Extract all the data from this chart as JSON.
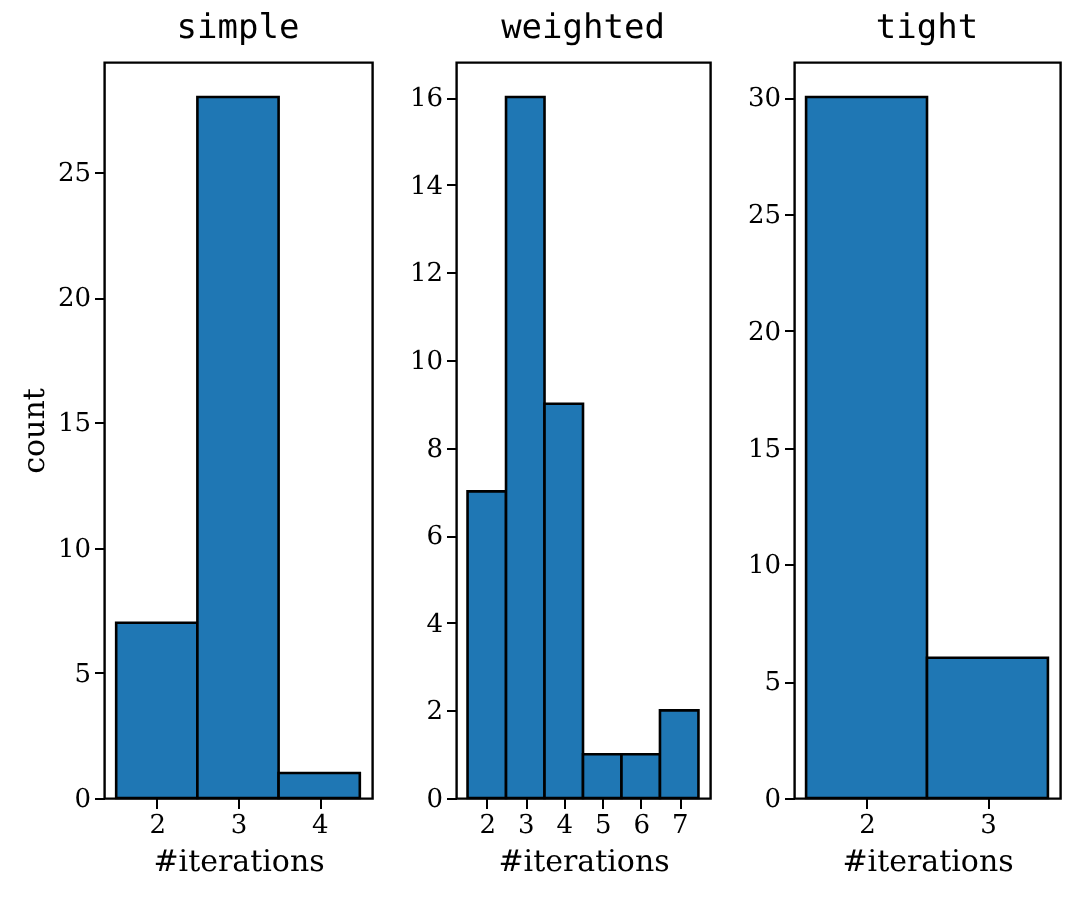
{
  "chart_data": [
    {
      "type": "histogram",
      "title": "simple",
      "xlabel": "#iterations",
      "ylabel": "count",
      "bins": [
        1.5,
        2.5,
        3.5,
        4.5
      ],
      "values": [
        7,
        28,
        1
      ],
      "color": "#1f77b4",
      "xlim": [
        1.35,
        4.65
      ],
      "xticks": [
        2,
        3,
        4
      ],
      "ylim": [
        0,
        29.4
      ],
      "yticks": [
        0,
        5,
        10,
        15,
        20,
        25
      ]
    },
    {
      "type": "histogram",
      "title": "weighted",
      "xlabel": "#iterations",
      "bins": [
        1.5,
        2.5,
        3.5,
        4.5,
        5.5,
        6.5,
        7.5
      ],
      "values": [
        7,
        16,
        9,
        1,
        1,
        2
      ],
      "color": "#1f77b4",
      "xlim": [
        1.2,
        7.8
      ],
      "xticks": [
        2,
        3,
        4,
        5,
        6,
        7
      ],
      "ylim": [
        0,
        16.8
      ],
      "yticks": [
        0,
        2,
        4,
        6,
        8,
        10,
        12,
        14,
        16
      ]
    },
    {
      "type": "histogram",
      "title": "tight",
      "xlabel": "#iterations",
      "bins": [
        1.5,
        2.5,
        3.5
      ],
      "values": [
        30,
        6
      ],
      "color": "#1f77b4",
      "xlim": [
        1.4,
        3.6
      ],
      "xticks": [
        2,
        3
      ],
      "ylim": [
        0,
        31.5
      ],
      "yticks": [
        0,
        5,
        10,
        15,
        20,
        25,
        30
      ]
    }
  ]
}
